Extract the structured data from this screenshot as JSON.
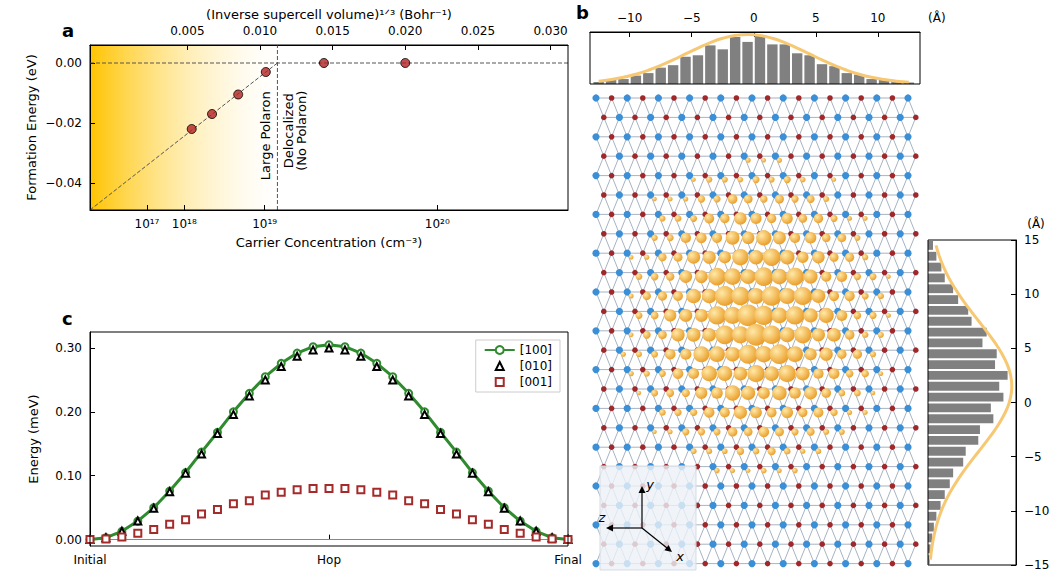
{
  "chart_data": [
    {
      "type": "scatter",
      "panel_label": "a",
      "x_label": "(Inverse supercell volume)¹ᐟ³ (Bohr⁻¹)",
      "x2_label": "Carrier Concentration (cm⁻³)",
      "y_label": "Formation Energy (eV)",
      "x": [
        0.0053,
        0.0067,
        0.0085,
        0.0104,
        0.0144,
        0.02
      ],
      "values": [
        -0.022,
        -0.017,
        -0.0105,
        -0.003,
        0,
        0
      ],
      "color": "#b22222",
      "marker": "circle",
      "xlim": [
        -0.0017,
        0.0312
      ],
      "xticks": [
        0.005,
        {
          "value": 0.01,
          "label": "0.010"
        },
        0.015,
        {
          "value": 0.02,
          "label": "0.020"
        },
        0.025,
        {
          "value": 0.03,
          "label": "0.030"
        }
      ],
      "x2ticks": [
        {
          "value": 0.00222,
          "label": "10¹⁷"
        },
        {
          "value": 0.00479,
          "label": "10¹⁸"
        },
        {
          "value": 0.01032,
          "label": "10¹⁹"
        },
        {
          "value": 0.0222,
          "label": "10²⁰"
        }
      ],
      "ylim": [
        -0.049,
        0.006
      ],
      "yticks": [
        {
          "value": 0,
          "label": "0.00"
        },
        {
          "value": -0.02,
          "label": "−0.02"
        },
        {
          "value": -0.04,
          "label": "−0.04"
        }
      ],
      "fit": {
        "x": [
          -0.0017,
          0.0112
        ],
        "values": [
          -0.049,
          0
        ],
        "line_style": "dashed"
      },
      "reference_lines": {
        "x": 0.0112,
        "y": 0
      },
      "regions": [
        {
          "text": [
            "Large Polaron"
          ],
          "x": [
            -0.0017,
            0.0112
          ],
          "color": "#ffc400"
        },
        {
          "text": [
            "Delocalized",
            "(No Polaron)"
          ],
          "x": [
            0.0112,
            0.0312
          ]
        }
      ],
      "grid": false
    },
    {
      "type": "histogram",
      "panel_label": "b",
      "bins": [
        -13,
        -12,
        -11,
        -10,
        -9,
        -8,
        -7,
        -6,
        -5,
        -4,
        -3,
        -2,
        -1,
        0,
        1,
        2,
        3,
        4,
        5,
        6,
        7,
        8,
        9,
        10,
        11,
        12,
        13
      ],
      "counts": [
        0.04,
        0.08,
        0.1,
        0.17,
        0.22,
        0.33,
        0.38,
        0.55,
        0.58,
        0.78,
        0.7,
        0.95,
        0.85,
        0.97,
        0.8,
        0.8,
        0.62,
        0.58,
        0.4,
        0.36,
        0.22,
        0.19,
        0.1,
        0.09,
        0.04,
        0.03
      ],
      "color": "#808080",
      "fit": {
        "values": [
          0.056,
          0.089,
          0.135,
          0.198,
          0.278,
          0.375,
          0.487,
          0.607,
          0.726,
          0.835,
          0.923,
          0.98,
          1,
          0.98,
          0.923,
          0.835,
          0.726,
          0.607,
          0.487,
          0.375,
          0.278,
          0.198,
          0.135,
          0.089,
          0.056,
          0.034
        ],
        "color": "#f7c873"
      },
      "xlim": [
        -13.2,
        13.4
      ],
      "xticks": [
        {
          "value": -10,
          "label": "−10"
        },
        {
          "value": -5,
          "label": "−5"
        },
        0,
        5,
        10
      ],
      "ylim": [
        0,
        1.05
      ],
      "tick_labels": "x",
      "unit_label": "(Å)",
      "annotations": [
        "x",
        "y",
        "z"
      ]
    },
    {
      "type": "histogram",
      "orientation": "horizontal",
      "bins": [
        -15,
        -14,
        -13,
        -12,
        -11,
        -10,
        -9,
        -8,
        -7,
        -6,
        -5,
        -4,
        -3,
        -2,
        -1,
        0,
        1,
        2,
        3,
        4,
        5,
        6,
        7,
        8,
        9,
        10,
        11,
        12,
        13,
        14,
        15
      ],
      "counts": [
        0.02,
        0.03,
        0.05,
        0.07,
        0.1,
        0.15,
        0.2,
        0.26,
        0.3,
        0.42,
        0.45,
        0.6,
        0.62,
        0.78,
        0.75,
        0.9,
        0.85,
        0.95,
        0.8,
        0.82,
        0.65,
        0.7,
        0.52,
        0.48,
        0.36,
        0.3,
        0.2,
        0.16,
        0.1,
        0.06
      ],
      "color": "#808080",
      "fit": {
        "values": [
          0.029,
          0.044,
          0.066,
          0.096,
          0.135,
          0.186,
          0.249,
          0.325,
          0.411,
          0.506,
          0.607,
          0.707,
          0.801,
          0.882,
          0.946,
          0.986,
          1,
          0.986,
          0.946,
          0.882,
          0.801,
          0.707,
          0.607,
          0.506,
          0.411,
          0.325,
          0.249,
          0.186,
          0.135,
          0.096
        ],
        "color": "#f7c873"
      },
      "xlim": [
        0,
        1.05
      ],
      "ylim": [
        -15,
        15
      ],
      "yticks": [
        {
          "value": -15,
          "label": "−15"
        },
        {
          "value": -10,
          "label": "−10"
        },
        {
          "value": -5,
          "label": "−5"
        },
        0,
        5,
        10,
        15
      ],
      "tick_labels": "y",
      "unit_label": "(Å)"
    },
    {
      "type": "line",
      "panel_label": "c",
      "y_label": "Energy (meV)",
      "categories": [
        "Initial",
        null,
        null,
        null,
        null,
        null,
        null,
        null,
        null,
        null,
        null,
        null,
        null,
        null,
        null,
        "Hop",
        null,
        null,
        null,
        null,
        null,
        null,
        null,
        null,
        null,
        null,
        null,
        null,
        null,
        null,
        "Final"
      ],
      "series": [
        {
          "name": "[100]",
          "color": "#2e8b2e",
          "marker": "circle",
          "line_style": "solid",
          "values": [
            0,
            0.003,
            0.013,
            0.029,
            0.05,
            0.076,
            0.105,
            0.137,
            0.168,
            0.2,
            0.229,
            0.255,
            0.276,
            0.292,
            0.302,
            0.305,
            0.302,
            0.292,
            0.276,
            0.255,
            0.229,
            0.2,
            0.168,
            0.137,
            0.105,
            0.076,
            0.05,
            0.029,
            0.013,
            0.003,
            0
          ]
        },
        {
          "name": "[010]",
          "color": "#000000",
          "marker": "triangle",
          "line_style": "none",
          "values": [
            0,
            0.003,
            0.013,
            0.029,
            0.049,
            0.075,
            0.104,
            0.134,
            0.166,
            0.196,
            0.225,
            0.25,
            0.271,
            0.287,
            0.297,
            0.3,
            0.297,
            0.287,
            0.271,
            0.25,
            0.225,
            0.196,
            0.166,
            0.134,
            0.104,
            0.075,
            0.049,
            0.029,
            0.013,
            0.003,
            0
          ]
        },
        {
          "name": "[001]",
          "color": "#a52a2a",
          "marker": "square",
          "line_style": "none",
          "values": [
            0,
            0.001,
            0.004,
            0.01,
            0.016,
            0.024,
            0.031,
            0.04,
            0.047,
            0.056,
            0.061,
            0.07,
            0.074,
            0.078,
            0.08,
            0.08,
            0.08,
            0.078,
            0.074,
            0.07,
            0.061,
            0.056,
            0.047,
            0.04,
            0.031,
            0.024,
            0.016,
            0.01,
            0.004,
            0.001,
            0
          ]
        }
      ],
      "ylim": [
        -0.01,
        0.325
      ],
      "yticks": [
        {
          "value": 0,
          "label": "0.00"
        },
        {
          "value": 0.1,
          "label": "0.10"
        },
        {
          "value": 0.2,
          "label": "0.20"
        },
        {
          "value": 0.3,
          "label": "0.30"
        }
      ],
      "reference_lines": {
        "y": 0
      },
      "legend": "upper right",
      "grid": false
    }
  ]
}
